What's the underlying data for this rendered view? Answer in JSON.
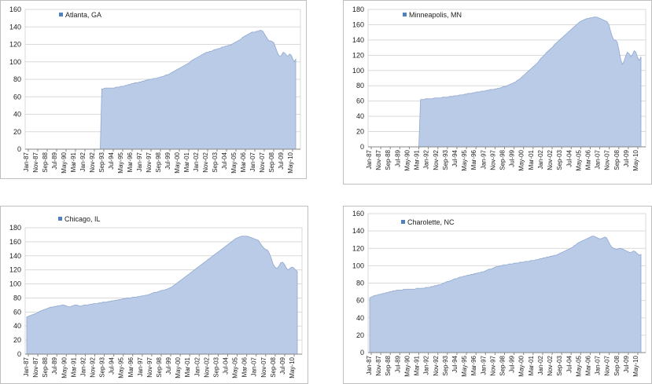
{
  "colors": {
    "area_fill": "#b9cbe6",
    "area_line": "#8fa8cf",
    "legend_swatch": "#4f81bd",
    "grid": "#d9d9d9",
    "border": "#bfbfbf"
  },
  "chart_data": [
    {
      "type": "area",
      "title": "",
      "legend": "Atlanta, GA",
      "legend_position": "top-left",
      "grid": true,
      "ylim": [
        0,
        160
      ],
      "yticks": [
        0,
        20,
        40,
        60,
        80,
        100,
        120,
        140,
        160
      ],
      "xtick_labels": [
        "Jan-87",
        "Nov-87",
        "Sep-88",
        "Jul-89",
        "May-90",
        "Mar-91",
        "Jan-92",
        "Nov-92",
        "Sep-93",
        "Jul-94",
        "May-95",
        "Mar-96",
        "Jan-97",
        "Nov-97",
        "Sep-98",
        "Jul-99",
        "May-00",
        "Mar-01",
        "Jan-02",
        "Nov-02",
        "Sep-03",
        "Jul-04",
        "May-05",
        "Mar-06",
        "Jan-07",
        "Nov-07",
        "Sep-08",
        "Jul-09",
        "May-10"
      ],
      "series": [
        {
          "values": [
            0,
            0,
            0,
            0,
            0,
            0,
            0,
            0,
            0,
            0,
            0,
            0,
            0,
            0,
            0,
            0,
            0,
            0,
            0,
            0,
            0,
            0,
            0,
            0,
            0,
            0,
            0,
            0,
            0,
            0,
            0,
            0,
            0,
            0,
            0,
            0,
            0,
            0,
            0,
            0,
            0,
            0,
            0,
            0,
            0,
            0,
            0,
            0,
            69,
            69,
            70,
            70,
            70,
            70,
            70,
            70,
            70,
            71,
            71,
            71,
            72,
            72,
            72,
            73,
            73,
            74,
            74,
            75,
            75,
            76,
            76,
            76,
            77,
            77,
            78,
            78,
            79,
            79,
            80,
            80,
            80,
            81,
            81,
            81,
            82,
            82,
            83,
            83,
            84,
            85,
            85,
            86,
            87,
            88,
            89,
            90,
            91,
            92,
            93,
            94,
            95,
            96,
            97,
            98,
            99,
            101,
            102,
            103,
            104,
            105,
            106,
            107,
            108,
            109,
            110,
            111,
            111,
            112,
            112,
            113,
            114,
            114,
            115,
            115,
            116,
            117,
            117,
            118,
            118,
            119,
            119,
            120,
            121,
            122,
            123,
            124,
            125,
            126,
            128,
            129,
            130,
            131,
            132,
            133,
            134,
            134,
            134,
            135,
            135,
            136,
            136,
            135,
            132,
            129,
            126,
            124,
            124,
            123,
            122,
            117,
            112,
            108,
            106,
            108,
            111,
            110,
            108,
            106,
            109,
            108,
            104,
            100,
            103
          ]
        }
      ]
    },
    {
      "type": "area",
      "title": "",
      "legend": "Minneapolis, MN",
      "legend_position": "top-left",
      "grid": true,
      "ylim": [
        0,
        180
      ],
      "yticks": [
        0,
        20,
        40,
        60,
        80,
        100,
        120,
        140,
        160,
        180
      ],
      "xtick_labels": [
        "Jan-87",
        "Nov-87",
        "Sep-88",
        "Jul-89",
        "May-90",
        "Mar-91",
        "Jan-92",
        "Nov-92",
        "Sep-93",
        "Jul-94",
        "May-95",
        "Mar-96",
        "Jan-97",
        "Nov-97",
        "Sep-98",
        "Jul-99",
        "May-00",
        "Mar-01",
        "Jan-02",
        "Nov-02",
        "Sep-03",
        "Jul-04",
        "May-05",
        "Mar-06",
        "Jan-07",
        "Nov-07",
        "Sep-08",
        "Jul-09",
        "May-10"
      ],
      "series": [
        {
          "values": [
            0,
            0,
            0,
            0,
            0,
            0,
            0,
            0,
            0,
            0,
            0,
            0,
            0,
            0,
            0,
            0,
            0,
            0,
            0,
            0,
            0,
            0,
            0,
            0,
            0,
            0,
            0,
            0,
            0,
            0,
            62,
            62,
            62,
            63,
            63,
            63,
            63,
            63,
            64,
            64,
            64,
            64,
            64,
            65,
            65,
            65,
            65,
            66,
            66,
            66,
            67,
            67,
            67,
            68,
            68,
            68,
            69,
            69,
            70,
            70,
            70,
            71,
            71,
            72,
            72,
            72,
            73,
            73,
            73,
            74,
            74,
            75,
            75,
            75,
            76,
            76,
            77,
            77,
            78,
            79,
            79,
            80,
            81,
            82,
            83,
            84,
            85,
            87,
            88,
            90,
            92,
            94,
            96,
            98,
            100,
            102,
            104,
            106,
            108,
            110,
            113,
            116,
            118,
            120,
            123,
            125,
            127,
            129,
            131,
            134,
            136,
            138,
            140,
            142,
            144,
            146,
            148,
            150,
            152,
            154,
            156,
            158,
            160,
            162,
            164,
            165,
            166,
            167,
            168,
            168,
            169,
            169,
            170,
            170,
            170,
            169,
            168,
            167,
            166,
            165,
            164,
            160,
            152,
            145,
            140,
            140,
            137,
            127,
            115,
            108,
            112,
            119,
            124,
            122,
            118,
            121,
            126,
            124,
            117,
            113,
            118
          ]
        }
      ]
    },
    {
      "type": "area",
      "title": "",
      "legend": "Chicago, IL",
      "legend_position": "top-left",
      "grid": true,
      "ylim": [
        0,
        180
      ],
      "yticks": [
        0,
        20,
        40,
        60,
        80,
        100,
        120,
        140,
        160,
        180
      ],
      "xtick_labels": [
        "Jan-87",
        "Nov-87",
        "Sep-88",
        "Jul-89",
        "May-90",
        "Mar-91",
        "Jan-92",
        "Nov-92",
        "Sep-93",
        "Jul-94",
        "May-95",
        "Mar-96",
        "Jan-97",
        "Nov-97",
        "Sep-98",
        "Jul-99",
        "May-00",
        "Mar-01",
        "Jan-02",
        "Nov-02",
        "Sep-03",
        "Jul-04",
        "May-05",
        "Mar-06",
        "Jan-07",
        "Nov-07",
        "Sep-08",
        "Jul-09",
        "May-10"
      ],
      "series": [
        {
          "values": [
            53,
            54,
            55,
            56,
            57,
            58,
            59,
            61,
            62,
            63,
            64,
            65,
            66,
            67,
            67,
            68,
            68,
            69,
            69,
            70,
            70,
            69,
            68,
            67,
            68,
            69,
            70,
            70,
            69,
            68,
            69,
            70,
            70,
            70,
            71,
            71,
            72,
            72,
            72,
            73,
            73,
            74,
            74,
            74,
            75,
            75,
            76,
            76,
            77,
            77,
            78,
            78,
            79,
            79,
            80,
            80,
            80,
            81,
            81,
            81,
            82,
            82,
            83,
            83,
            84,
            84,
            85,
            86,
            87,
            88,
            88,
            89,
            90,
            91,
            91,
            92,
            93,
            94,
            95,
            97,
            99,
            101,
            103,
            105,
            107,
            109,
            111,
            113,
            115,
            117,
            119,
            121,
            123,
            125,
            127,
            129,
            131,
            133,
            135,
            137,
            139,
            141,
            143,
            145,
            147,
            149,
            151,
            153,
            155,
            157,
            159,
            161,
            163,
            165,
            166,
            167,
            168,
            168,
            168,
            168,
            167,
            166,
            165,
            164,
            163,
            162,
            158,
            154,
            151,
            149,
            148,
            143,
            136,
            128,
            124,
            122,
            125,
            130,
            131,
            128,
            123,
            120,
            122,
            124,
            123,
            120,
            118
          ]
        }
      ]
    },
    {
      "type": "area",
      "title": "",
      "legend": "Charolette, NC",
      "legend_position": "top-left",
      "grid": true,
      "ylim": [
        0,
        160
      ],
      "yticks": [
        0,
        20,
        40,
        60,
        80,
        100,
        120,
        140,
        160
      ],
      "xtick_labels": [
        "Jan-87",
        "Nov-87",
        "Sep-88",
        "Jul-89",
        "May-90",
        "Mar-91",
        "Jan-92",
        "Nov-92",
        "Sep-93",
        "Jul-94",
        "May-95",
        "Mar-96",
        "Jan-97",
        "Nov-97",
        "Sep-98",
        "Jul-99",
        "May-00",
        "Mar-01",
        "Jan-02",
        "Nov-02",
        "Sep-03",
        "Jul-04",
        "May-05",
        "Mar-06",
        "Jan-07",
        "Nov-07",
        "Sep-08",
        "Jul-09",
        "May-10"
      ],
      "series": [
        {
          "values": [
            63,
            64,
            65,
            66,
            66,
            67,
            67,
            68,
            68,
            69,
            69,
            70,
            70,
            71,
            71,
            72,
            72,
            72,
            72,
            73,
            73,
            73,
            73,
            73,
            73,
            73,
            74,
            74,
            74,
            74,
            74,
            75,
            75,
            75,
            76,
            76,
            77,
            77,
            78,
            78,
            79,
            80,
            81,
            82,
            82,
            83,
            84,
            85,
            85,
            86,
            87,
            87,
            88,
            88,
            89,
            89,
            90,
            90,
            91,
            91,
            92,
            92,
            93,
            93,
            94,
            95,
            96,
            96,
            97,
            98,
            99,
            99,
            100,
            100,
            101,
            101,
            101,
            102,
            102,
            102,
            103,
            103,
            103,
            104,
            104,
            104,
            105,
            105,
            105,
            106,
            106,
            106,
            107,
            107,
            108,
            108,
            109,
            109,
            110,
            110,
            111,
            111,
            112,
            112,
            113,
            114,
            115,
            116,
            117,
            118,
            119,
            120,
            121,
            123,
            124,
            126,
            127,
            128,
            129,
            130,
            131,
            132,
            133,
            134,
            134,
            133,
            132,
            131,
            131,
            132,
            133,
            132,
            128,
            124,
            121,
            120,
            119,
            119,
            120,
            120,
            119,
            118,
            117,
            116,
            115,
            116,
            117,
            116,
            114,
            112,
            113
          ]
        }
      ]
    }
  ]
}
